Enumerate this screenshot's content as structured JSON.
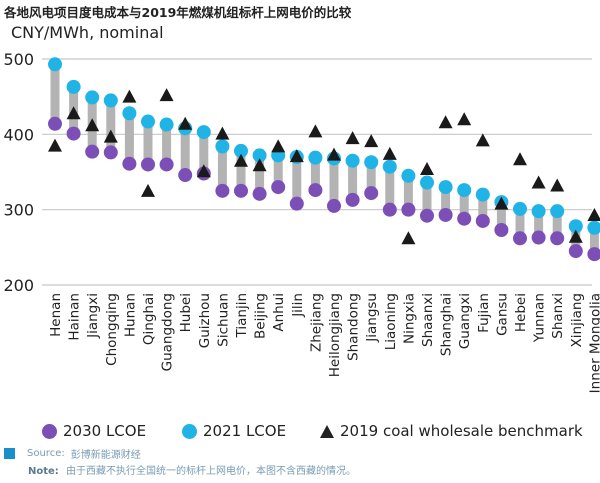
{
  "title": "各地风电项目度电成本与2019年燃煤机组标杆上网电价的比较",
  "ylabel": "CNY/MWh, nominal",
  "legend": {
    "lcoe2030": "2030 LCOE",
    "lcoe2021": "2021 LCOE",
    "coal": "2019 coal wholesale benchmark"
  },
  "source_label": "Source:",
  "source_text": "彭博新能源财经",
  "note_label": "Note:",
  "note_text": "由于西藏不执行全国统一的标杆上网电价，本图不含西藏的情况。",
  "colors": {
    "lcoe2030": "#7b4fb5",
    "lcoe2021": "#1fb3e6",
    "coal": "#1a1a1a",
    "range": "#b3b3b3",
    "grid": "#c8c8c8"
  },
  "chart_data": {
    "type": "scatter",
    "ylabel": "CNY/MWh, nominal",
    "ylim": [
      200,
      500
    ],
    "yticks": [
      200,
      300,
      400,
      500
    ],
    "grid": true,
    "legend_position": "bottom",
    "categories": [
      "Henan",
      "Hainan",
      "Jiangxi",
      "Chongqing",
      "Hunan",
      "Qinghai",
      "Guangdong",
      "Hubei",
      "Guizhou",
      "Sichuan",
      "Tianjin",
      "Beijing",
      "Anhui",
      "Jilin",
      "Zhejiang",
      "Heilongjiang",
      "Shandong",
      "Jiangsu",
      "Liaoning",
      "Ningxia",
      "Shaanxi",
      "Shanghai",
      "Guangxi",
      "Fujian",
      "Gansu",
      "Hebei",
      "Yunnan",
      "Shanxi",
      "Xinjiang",
      "Inner Mongolia"
    ],
    "series": [
      {
        "name": "2030 LCOE",
        "marker": "circle",
        "values": [
          414,
          401,
          377,
          376,
          361,
          360,
          360,
          346,
          348,
          325,
          325,
          321,
          330,
          308,
          326,
          305,
          313,
          322,
          300,
          300,
          292,
          293,
          288,
          285,
          273,
          262,
          263,
          262,
          245,
          241
        ]
      },
      {
        "name": "2021 LCOE",
        "marker": "circle",
        "values": [
          493,
          463,
          449,
          445,
          428,
          417,
          413,
          408,
          403,
          384,
          378,
          372,
          372,
          370,
          369,
          368,
          365,
          363,
          357,
          345,
          336,
          330,
          326,
          320,
          310,
          301,
          298,
          298,
          278,
          276
        ]
      },
      {
        "name": "2019 coal wholesale benchmark",
        "marker": "triangle",
        "values": [
          385,
          428,
          412,
          397,
          450,
          325,
          452,
          414,
          351,
          401,
          365,
          359,
          384,
          371,
          404,
          373,
          395,
          391,
          374,
          262,
          354,
          416,
          420,
          392,
          308,
          367,
          336,
          332,
          264,
          293
        ]
      }
    ]
  }
}
